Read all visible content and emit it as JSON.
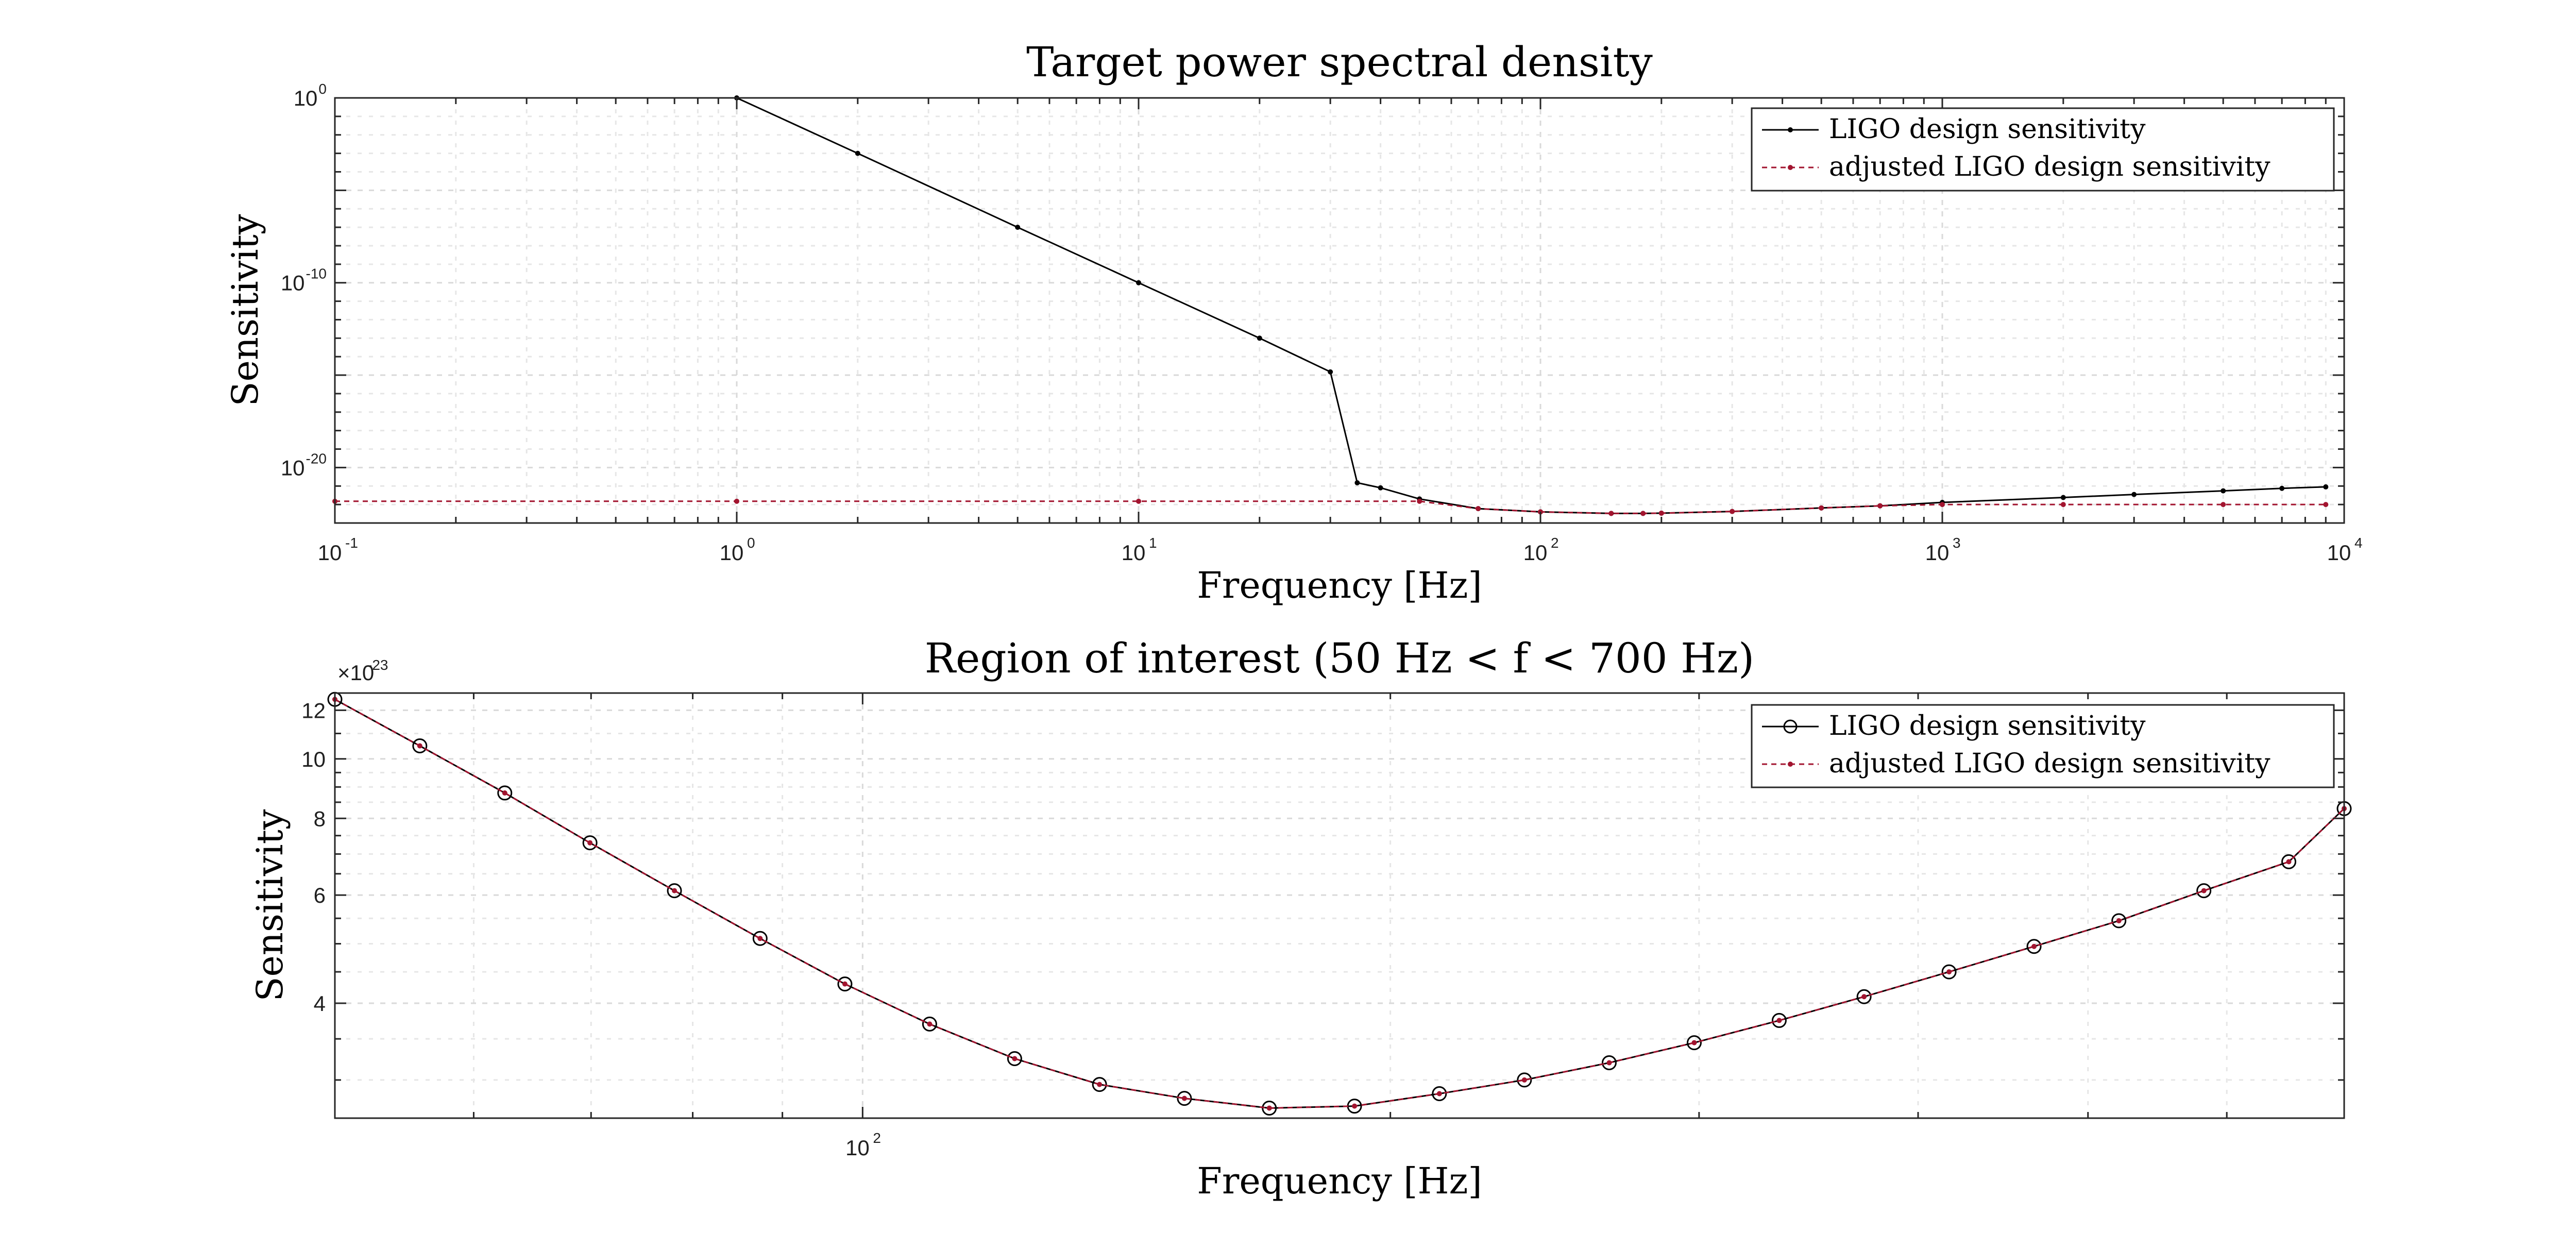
{
  "chart_data": [
    {
      "type": "line",
      "title": "Target power spectral density",
      "xlabel": "Frequency [Hz]",
      "ylabel": "Sensitivity",
      "x_scale": "log",
      "y_scale": "log",
      "xlim": [
        0.1,
        10000
      ],
      "ylim": [
        1e-23,
        1
      ],
      "x_ticks": [
        {
          "value": 0.1,
          "base": "10",
          "exp": "-1"
        },
        {
          "value": 1,
          "base": "10",
          "exp": "0"
        },
        {
          "value": 10,
          "base": "10",
          "exp": "1"
        },
        {
          "value": 100,
          "base": "10",
          "exp": "2"
        },
        {
          "value": 1000,
          "base": "10",
          "exp": "3"
        },
        {
          "value": 10000,
          "base": "10",
          "exp": "4"
        }
      ],
      "y_ticks": [
        {
          "value": 1,
          "base": "10",
          "exp": "0"
        },
        {
          "value": 1e-10,
          "base": "10",
          "exp": "-10"
        },
        {
          "value": 1e-20,
          "base": "10",
          "exp": "-20"
        }
      ],
      "grid": true,
      "legend_position": "top-right",
      "series": [
        {
          "name": "LIGO design sensitivity",
          "color": "#000000",
          "marker": "dot",
          "x": [
            1,
            2,
            5,
            10,
            20,
            30,
            35,
            40,
            50,
            70,
            100,
            150,
            180,
            200,
            300,
            500,
            700,
            1000,
            2000,
            3000,
            5000,
            7000,
            9000
          ],
          "y": [
            1,
            0.001,
            1e-07,
            1e-10,
            1e-13,
            1.5e-15,
            1.5e-21,
            8e-22,
            2e-22,
            6e-23,
            4e-23,
            3.3e-23,
            3.3e-23,
            3.4e-23,
            4.2e-23,
            6.5e-23,
            8.5e-23,
            1.3e-22,
            2.4e-22,
            3.5e-22,
            5.5e-22,
            7.5e-22,
            9e-22
          ]
        },
        {
          "name": "adjusted LIGO design sensitivity",
          "color": "#a2142f",
          "marker": "dot",
          "x": [
            0.1,
            1,
            10,
            50,
            70,
            100,
            150,
            180,
            200,
            300,
            500,
            700,
            1000,
            2000,
            5000,
            9000
          ],
          "y": [
            1.5e-22,
            1.5e-22,
            1.5e-22,
            1.5e-22,
            6e-23,
            4e-23,
            3.3e-23,
            3.3e-23,
            3.4e-23,
            4.2e-23,
            6.5e-23,
            8.5e-23,
            1e-22,
            1e-22,
            1e-22,
            1e-22
          ]
        }
      ]
    },
    {
      "type": "line",
      "title": "Region of interest (50 Hz < f < 700 Hz)",
      "xlabel": "Frequency [Hz]",
      "ylabel": "Sensitivity",
      "x_scale": "log",
      "y_scale": "log",
      "xlim": [
        50,
        700
      ],
      "ylim": [
        2.6e-23,
        1.28e-22
      ],
      "y_multiplier": {
        "base": "×10",
        "exp": "-23"
      },
      "x_ticks": [
        {
          "value": 100,
          "base": "10",
          "exp": "2"
        }
      ],
      "y_ticks": [
        {
          "value": 4,
          "label": "4"
        },
        {
          "value": 6,
          "label": "6"
        },
        {
          "value": 8,
          "label": "8"
        },
        {
          "value": 10,
          "label": "10"
        },
        {
          "value": 12,
          "label": "12"
        }
      ],
      "grid": true,
      "legend_position": "top-right",
      "series": [
        {
          "name": "LIGO design sensitivity",
          "color": "#000000",
          "marker": "circle",
          "x": [
            50,
            55.9,
            62.5,
            69.9,
            78.1,
            87.4,
            97.7,
            109.2,
            122.1,
            136.5,
            152.6,
            170.6,
            190.8,
            213.3,
            238.5,
            266.6,
            298.1,
            333.3,
            372.6,
            416.6,
            465.8,
            520.7,
            582.2,
            650.9,
            700
          ],
          "y": [
            12.5,
            10.5,
            8.8,
            7.3,
            6.1,
            5.1,
            4.3,
            3.7,
            3.25,
            2.95,
            2.8,
            2.7,
            2.72,
            2.85,
            3.0,
            3.2,
            3.45,
            3.75,
            4.1,
            4.5,
            4.95,
            5.45,
            6.1,
            6.8,
            8.3
          ]
        },
        {
          "name": "adjusted LIGO design sensitivity",
          "color": "#a2142f",
          "marker": "dot",
          "x": [
            50,
            55.9,
            62.5,
            69.9,
            78.1,
            87.4,
            97.7,
            109.2,
            122.1,
            136.5,
            152.6,
            170.6,
            190.8,
            213.3,
            238.5,
            266.6,
            298.1,
            333.3,
            372.6,
            416.6,
            465.8,
            520.7,
            582.2,
            650.9,
            700
          ],
          "y": [
            12.5,
            10.5,
            8.8,
            7.3,
            6.1,
            5.1,
            4.3,
            3.7,
            3.25,
            2.95,
            2.8,
            2.7,
            2.72,
            2.85,
            3.0,
            3.2,
            3.45,
            3.75,
            4.1,
            4.5,
            4.95,
            5.45,
            6.1,
            6.8,
            8.3
          ]
        }
      ]
    }
  ]
}
